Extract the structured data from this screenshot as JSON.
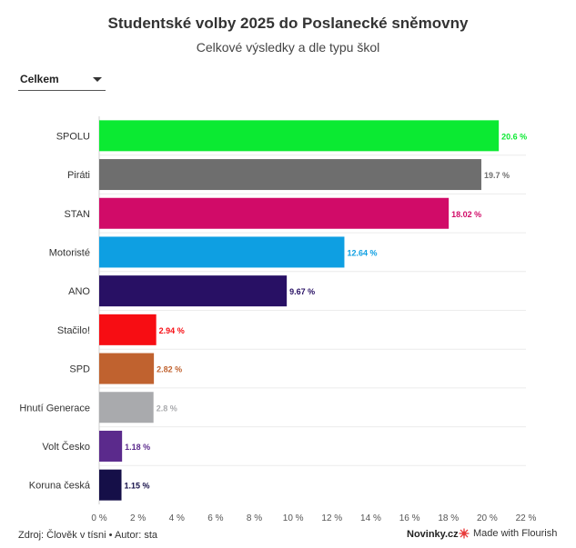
{
  "header": {
    "title": "Studentské volby 2025 do Poslanecké sněmovny",
    "subtitle": "Celkové výsledky a dle typu škol"
  },
  "filter": {
    "selected": "Celkem"
  },
  "chart_data": {
    "type": "bar",
    "orientation": "horizontal",
    "categories": [
      "SPOLU",
      "Piráti",
      "STAN",
      "Motoristé",
      "ANO",
      "Stačilo!",
      "SPD",
      "Hnutí Generace",
      "Volt Česko",
      "Koruna česká"
    ],
    "values": [
      20.6,
      19.7,
      18.02,
      12.64,
      9.67,
      2.94,
      2.82,
      2.8,
      1.18,
      1.15
    ],
    "value_labels": [
      "20.6 %",
      "19.7 %",
      "18.02 %",
      "12.64 %",
      "9.67 %",
      "2.94 %",
      "2.82 %",
      "2.8 %",
      "1.18 %",
      "1.15 %"
    ],
    "colors": [
      "#0bea32",
      "#6e6e6e",
      "#d10b68",
      "#0e9fe2",
      "#281064",
      "#f70d13",
      "#c0622f",
      "#a9aaad",
      "#5b2a8c",
      "#150f48"
    ],
    "label_colors": [
      "#0bea32",
      "#6e6e6e",
      "#d10b68",
      "#0e9fe2",
      "#281064",
      "#f70d13",
      "#c0622f",
      "#a9aaad",
      "#5b2a8c",
      "#150f48"
    ],
    "xlim": [
      0,
      22
    ],
    "xticks": [
      "0 %",
      "2 %",
      "4 %",
      "6 %",
      "8 %",
      "10 %",
      "12 %",
      "14 %",
      "16 %",
      "18 %",
      "20 %",
      "22 %"
    ],
    "grid": true
  },
  "footer": {
    "source": "Zdroj: Člověk v tísni • Autor: sta",
    "brand": "Novinky.cz",
    "flourish": "Made with Flourish",
    "flourish_icon": "flourish-logo-icon"
  }
}
